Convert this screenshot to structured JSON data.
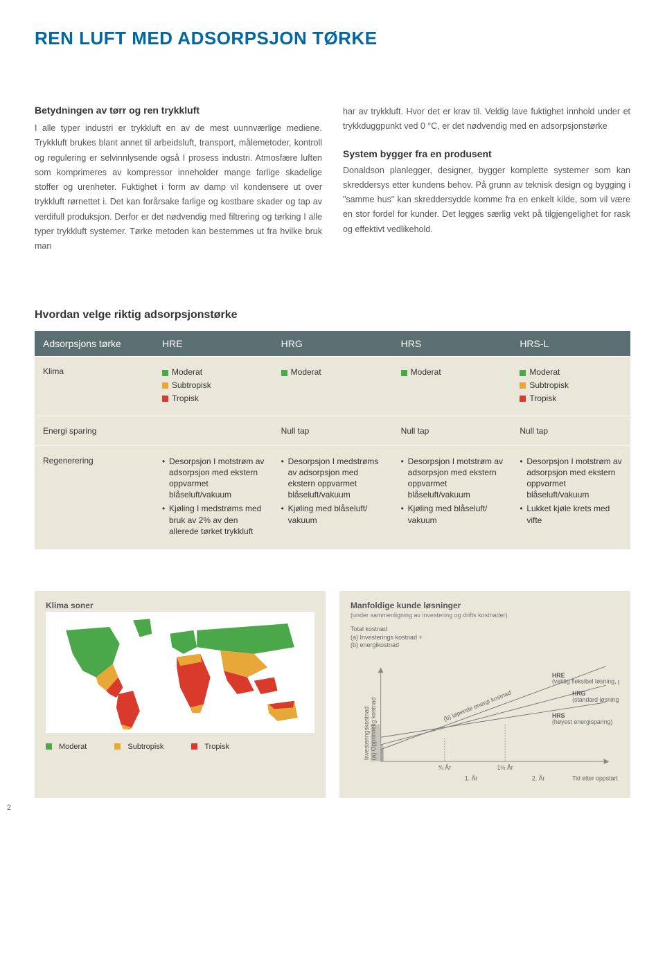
{
  "title": "REN LUFT MED ADSORPSJON TØRKE",
  "left": {
    "heading": "Betydningen av tørr og ren trykkluft",
    "body": "I alle typer industri er trykkluft en av de mest uunnværlige mediene. Trykkluft brukes blant annet til arbeidsluft, transport, målemetoder, kontroll og regulering er selvinnlysende også I prosess industri. Atmosfære luften som komprimeres av kompressor inneholder mange farlige skadelige stoffer og urenheter. Fuktighet i form av damp vil kondensere ut over trykkluft rørnettet i. Det kan forårsake farlige og kostbare skader og tap av verdifull produksjon. Derfor er det nødvendig med filtrering og tørking I alle typer trykkluft systemer. Tørke metoden kan bestemmes ut fra hvilke bruk man"
  },
  "right": {
    "body1": "har av trykkluft. Hvor det er krav til. Veldig lave fuktighet innhold under et trykkduggpunkt ved 0 °C, er det nødvendig med en adsorpsjonstørke",
    "heading2": "System bygger fra en produsent",
    "body2": "Donaldson planlegger, designer, bygger komplette systemer som kan skreddersys etter kundens behov. På grunn av teknisk design og bygging i \"samme hus\" kan skreddersydde komme fra en enkelt kilde, som vil være en stor fordel for kunder. Det legges særlig vekt på tilgjengelighet for rask og effektivt vedlikehold."
  },
  "tableTitle": "Hvordan velge riktig adsorpsjonstørke",
  "table": {
    "headers": [
      "Adsorpsjons tørke",
      "HRE",
      "HRG",
      "HRS",
      "HRS-L"
    ],
    "rows": {
      "klima": {
        "label": "Klima",
        "hre": [
          {
            "c": "#4aa84a",
            "t": "Moderat"
          },
          {
            "c": "#e8a838",
            "t": "Subtropisk"
          },
          {
            "c": "#d93a2b",
            "t": "Tropisk"
          }
        ],
        "hrg": [
          {
            "c": "#4aa84a",
            "t": "Moderat"
          }
        ],
        "hrs": [
          {
            "c": "#4aa84a",
            "t": "Moderat"
          }
        ],
        "hrsl": [
          {
            "c": "#4aa84a",
            "t": "Moderat"
          },
          {
            "c": "#e8a838",
            "t": "Subtropisk"
          },
          {
            "c": "#d93a2b",
            "t": "Tropisk"
          }
        ]
      },
      "energi": {
        "label": "Energi sparing",
        "hre": "",
        "hrg": "Null tap",
        "hrs": "Null tap",
        "hrsl": "Null tap"
      },
      "regen": {
        "label": "Regenerering",
        "hre": [
          "Desorpsjon I motstrøm av adsorpsjon med ekstern oppvarmet blåseluft/vakuum",
          "Kjøling I medstrøms med bruk av 2% av den allerede tørket trykkluft"
        ],
        "hrg": [
          "Desorpsjon I medstrøms av adsorpsjon med ekstern oppvarmet blåseluft/vakuum",
          "Kjøling med blåseluft/ vakuum"
        ],
        "hrs": [
          "Desorpsjon I motstrøm av adsorpsjon med ekstern oppvarmet blåseluft/vakuum",
          "Kjøling med blåseluft/ vakuum"
        ],
        "hrsl": [
          "Desorpsjon I motstrøm av adsorpsjon med ekstern oppvarmet blåseluft/vakuum",
          "Lukket kjøle krets med vifte"
        ]
      }
    }
  },
  "colors": {
    "green": "#4aa84a",
    "orange": "#e8a838",
    "red": "#d93a2b",
    "tableHeader": "#5b6f73",
    "panelBg": "#eae6da",
    "title": "#0066a4"
  },
  "mapPanel": {
    "title": "Klima soner",
    "legend": [
      {
        "c": "#4aa84a",
        "t": "Moderat"
      },
      {
        "c": "#e8a838",
        "t": "Subtropisk"
      },
      {
        "c": "#d93a2b",
        "t": "Tropisk"
      }
    ]
  },
  "chartPanel": {
    "title": "Manfoldige kunde løsninger",
    "subtitle": "(under sammenligning av investering og drifts kostnader)",
    "ylabel_top": "Total kostnad",
    "ylabel_sub1": "(a) Investerings kostnad +",
    "ylabel_sub2": "(b) energikostnad",
    "y_axis_rot1": "(a) Opprinnelig kostnad",
    "y_axis_rot2": "Investeringskostnad",
    "diag_label": "(b) løpende energi kostnad",
    "lines": [
      {
        "name": "HRE",
        "desc": "(veldig fleksibel løsning, passer i alle type klima)",
        "slope": 0.95,
        "intercept": 18
      },
      {
        "name": "HRG",
        "desc": "(standard løsning)",
        "slope": 0.68,
        "intercept": 25
      },
      {
        "name": "HRS",
        "desc": "(høyest energisparing)",
        "slope": 0.4,
        "intercept": 36
      }
    ],
    "xticks": [
      "¾ År",
      "1½ År"
    ],
    "xaxis": [
      "1. År",
      "2. År",
      "Tid etter oppstart"
    ]
  },
  "pageNum": "2"
}
